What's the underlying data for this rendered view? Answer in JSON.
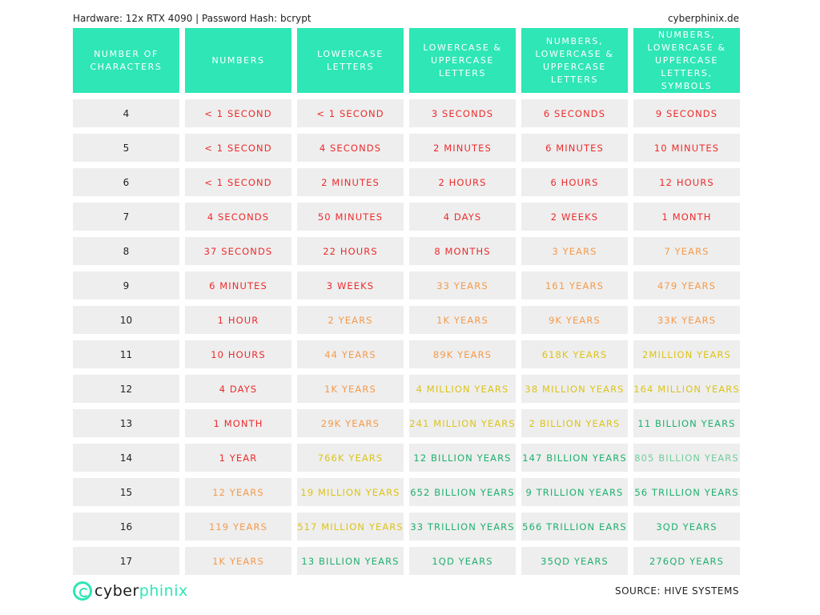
{
  "header": {
    "hardware_text": "Hardware: 12x RTX 4090 | Password Hash: bcrypt",
    "site": "cyberphinix.de"
  },
  "table": {
    "columns": [
      "Number of characters",
      "Numbers",
      "Lowercase letters",
      "Lowercase & uppercase letters",
      "Numbers, lowercase & uppercase letters",
      "Numbers, lowercase & uppercase letters, symbols"
    ],
    "rows": [
      {
        "chars": "4",
        "cells": [
          {
            "text": "< 1 Second",
            "color": "red"
          },
          {
            "text": "< 1 Second",
            "color": "red"
          },
          {
            "text": "3 Seconds",
            "color": "red"
          },
          {
            "text": "6 Seconds",
            "color": "red"
          },
          {
            "text": "9 Seconds",
            "color": "red"
          }
        ]
      },
      {
        "chars": "5",
        "cells": [
          {
            "text": "< 1 Second",
            "color": "red"
          },
          {
            "text": "4 Seconds",
            "color": "red"
          },
          {
            "text": "2 Minutes",
            "color": "red"
          },
          {
            "text": "6 Minutes",
            "color": "red"
          },
          {
            "text": "10 Minutes",
            "color": "red"
          }
        ]
      },
      {
        "chars": "6",
        "cells": [
          {
            "text": "< 1 Second",
            "color": "red"
          },
          {
            "text": "2 Minutes",
            "color": "red"
          },
          {
            "text": "2 Hours",
            "color": "red"
          },
          {
            "text": "6 Hours",
            "color": "red"
          },
          {
            "text": "12 Hours",
            "color": "red"
          }
        ]
      },
      {
        "chars": "7",
        "cells": [
          {
            "text": "4 Seconds",
            "color": "red"
          },
          {
            "text": "50 Minutes",
            "color": "red"
          },
          {
            "text": "4 Days",
            "color": "red"
          },
          {
            "text": "2 Weeks",
            "color": "red"
          },
          {
            "text": "1 Month",
            "color": "red"
          }
        ]
      },
      {
        "chars": "8",
        "cells": [
          {
            "text": "37 Seconds",
            "color": "red"
          },
          {
            "text": "22 Hours",
            "color": "red"
          },
          {
            "text": "8 Months",
            "color": "red"
          },
          {
            "text": "3 Years",
            "color": "orange"
          },
          {
            "text": "7 Years",
            "color": "orange"
          }
        ]
      },
      {
        "chars": "9",
        "cells": [
          {
            "text": "6 Minutes",
            "color": "red"
          },
          {
            "text": "3 Weeks",
            "color": "red"
          },
          {
            "text": "33 Years",
            "color": "orange"
          },
          {
            "text": "161 Years",
            "color": "orange"
          },
          {
            "text": "479 Years",
            "color": "orange"
          }
        ]
      },
      {
        "chars": "10",
        "cells": [
          {
            "text": "1 Hour",
            "color": "red"
          },
          {
            "text": "2 Years",
            "color": "orange"
          },
          {
            "text": "1K Years",
            "color": "orange"
          },
          {
            "text": "9K Years",
            "color": "orange"
          },
          {
            "text": "33K Years",
            "color": "orange"
          }
        ]
      },
      {
        "chars": "11",
        "cells": [
          {
            "text": "10 Hours",
            "color": "red"
          },
          {
            "text": "44 Years",
            "color": "orange"
          },
          {
            "text": "89K Years",
            "color": "orange"
          },
          {
            "text": "618K Years",
            "color": "yellow"
          },
          {
            "text": "2Million Years",
            "color": "yellow"
          }
        ]
      },
      {
        "chars": "12",
        "cells": [
          {
            "text": "4 Days",
            "color": "red"
          },
          {
            "text": "1K Years",
            "color": "orange"
          },
          {
            "text": "4 Million Years",
            "color": "yellow"
          },
          {
            "text": "38 Million Years",
            "color": "yellow"
          },
          {
            "text": "164 Million Years",
            "color": "yellow"
          }
        ]
      },
      {
        "chars": "13",
        "cells": [
          {
            "text": "1 Month",
            "color": "red"
          },
          {
            "text": "29K Years",
            "color": "orange"
          },
          {
            "text": "241 Million Years",
            "color": "yellow"
          },
          {
            "text": "2 Billion Years",
            "color": "yellow"
          },
          {
            "text": "11 Billion Years",
            "color": "green"
          }
        ]
      },
      {
        "chars": "14",
        "cells": [
          {
            "text": "1 Year",
            "color": "red"
          },
          {
            "text": "766K Years",
            "color": "yellow"
          },
          {
            "text": "12 Billion Years",
            "color": "green"
          },
          {
            "text": "147 Billion Years",
            "color": "green"
          },
          {
            "text": "805 Billion Years",
            "color": "lightgreen"
          }
        ]
      },
      {
        "chars": "15",
        "cells": [
          {
            "text": "12 Years",
            "color": "orange"
          },
          {
            "text": "19 Million Years",
            "color": "yellow"
          },
          {
            "text": "652 Billion Years",
            "color": "green"
          },
          {
            "text": "9 Trillion Years",
            "color": "green"
          },
          {
            "text": "56 Trillion Years",
            "color": "green"
          }
        ]
      },
      {
        "chars": "16",
        "cells": [
          {
            "text": "119 Years",
            "color": "orange"
          },
          {
            "text": "517 Million Years",
            "color": "yellow"
          },
          {
            "text": "33 Trillion Years",
            "color": "green"
          },
          {
            "text": "566 Trillion Ears",
            "color": "green"
          },
          {
            "text": "3QD Years",
            "color": "green"
          }
        ]
      },
      {
        "chars": "17",
        "cells": [
          {
            "text": "1K Years",
            "color": "orange"
          },
          {
            "text": "13 Billion Years",
            "color": "green"
          },
          {
            "text": "1QD Years",
            "color": "green"
          },
          {
            "text": "35QD Years",
            "color": "green"
          },
          {
            "text": "276QD Years",
            "color": "green"
          }
        ]
      }
    ]
  },
  "footer": {
    "logo_text_a": "cyber",
    "logo_text_b": "phinix",
    "source": "SOURCE: HIVE SYSTEMS"
  },
  "colors": {
    "header_bg": "#2ee6b6",
    "cell_bg": "#eeeeee",
    "red": "#ee2b2b",
    "orange": "#f59a4a",
    "yellow": "#dcc416",
    "green": "#1fb06e",
    "lightgreen": "#72cc9c"
  },
  "icons": {
    "logo": "cyberphinix-logo-icon"
  }
}
